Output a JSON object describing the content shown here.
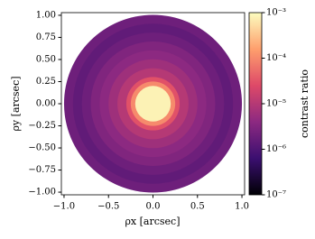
{
  "chart_data": {
    "type": "heatmap",
    "xlabel": "ρx [arcsec]",
    "ylabel": "ρy [arcsec]",
    "colorbar_label": "contrast ratio",
    "xlim": [
      -1.03,
      1.03
    ],
    "ylim": [
      -1.03,
      1.03
    ],
    "xticks": [
      {
        "value": -1,
        "label": "−1.0"
      },
      {
        "value": -0.5,
        "label": "−0.5"
      },
      {
        "value": 0,
        "label": "0.0"
      },
      0.5,
      {
        "value": 1,
        "label": "1.0"
      }
    ],
    "yticks": [
      {
        "value": -1,
        "label": "−1.00"
      },
      {
        "value": -0.75,
        "label": "−0.75"
      },
      {
        "value": -0.5,
        "label": "−0.50"
      },
      {
        "value": -0.25,
        "label": "−0.25"
      },
      {
        "value": 0,
        "label": "0.00"
      },
      0.25,
      {
        "value": 0.5,
        "label": "0.50"
      },
      0.75,
      {
        "value": 1,
        "label": "1.00"
      }
    ],
    "clim": [
      1e-07,
      0.001
    ],
    "log_color": true,
    "cticks": [
      {
        "value": 1e-07,
        "label": "10⁻⁷"
      },
      {
        "value": 1e-06,
        "label": "10⁻⁶"
      },
      {
        "value": 1e-05,
        "label": "10⁻⁵"
      },
      {
        "value": 0.0001,
        "label": "10⁻⁴"
      },
      {
        "value": 0.001,
        "label": "10⁻³"
      }
    ],
    "colormap": [
      "#000004",
      "#3b0f70",
      "#8c2981",
      "#de4968",
      "#fe9f6d",
      "#fcfdbf"
    ],
    "radii": [
      1.0,
      0.9,
      0.8,
      0.7,
      0.6,
      0.5,
      0.4,
      0.3,
      0.25,
      0.2
    ],
    "values": [
      2e-06,
      1.5e-06,
      2e-06,
      3e-06,
      4e-06,
      6e-06,
      1e-05,
      3e-05,
      0.0001,
      0.0008
    ]
  }
}
